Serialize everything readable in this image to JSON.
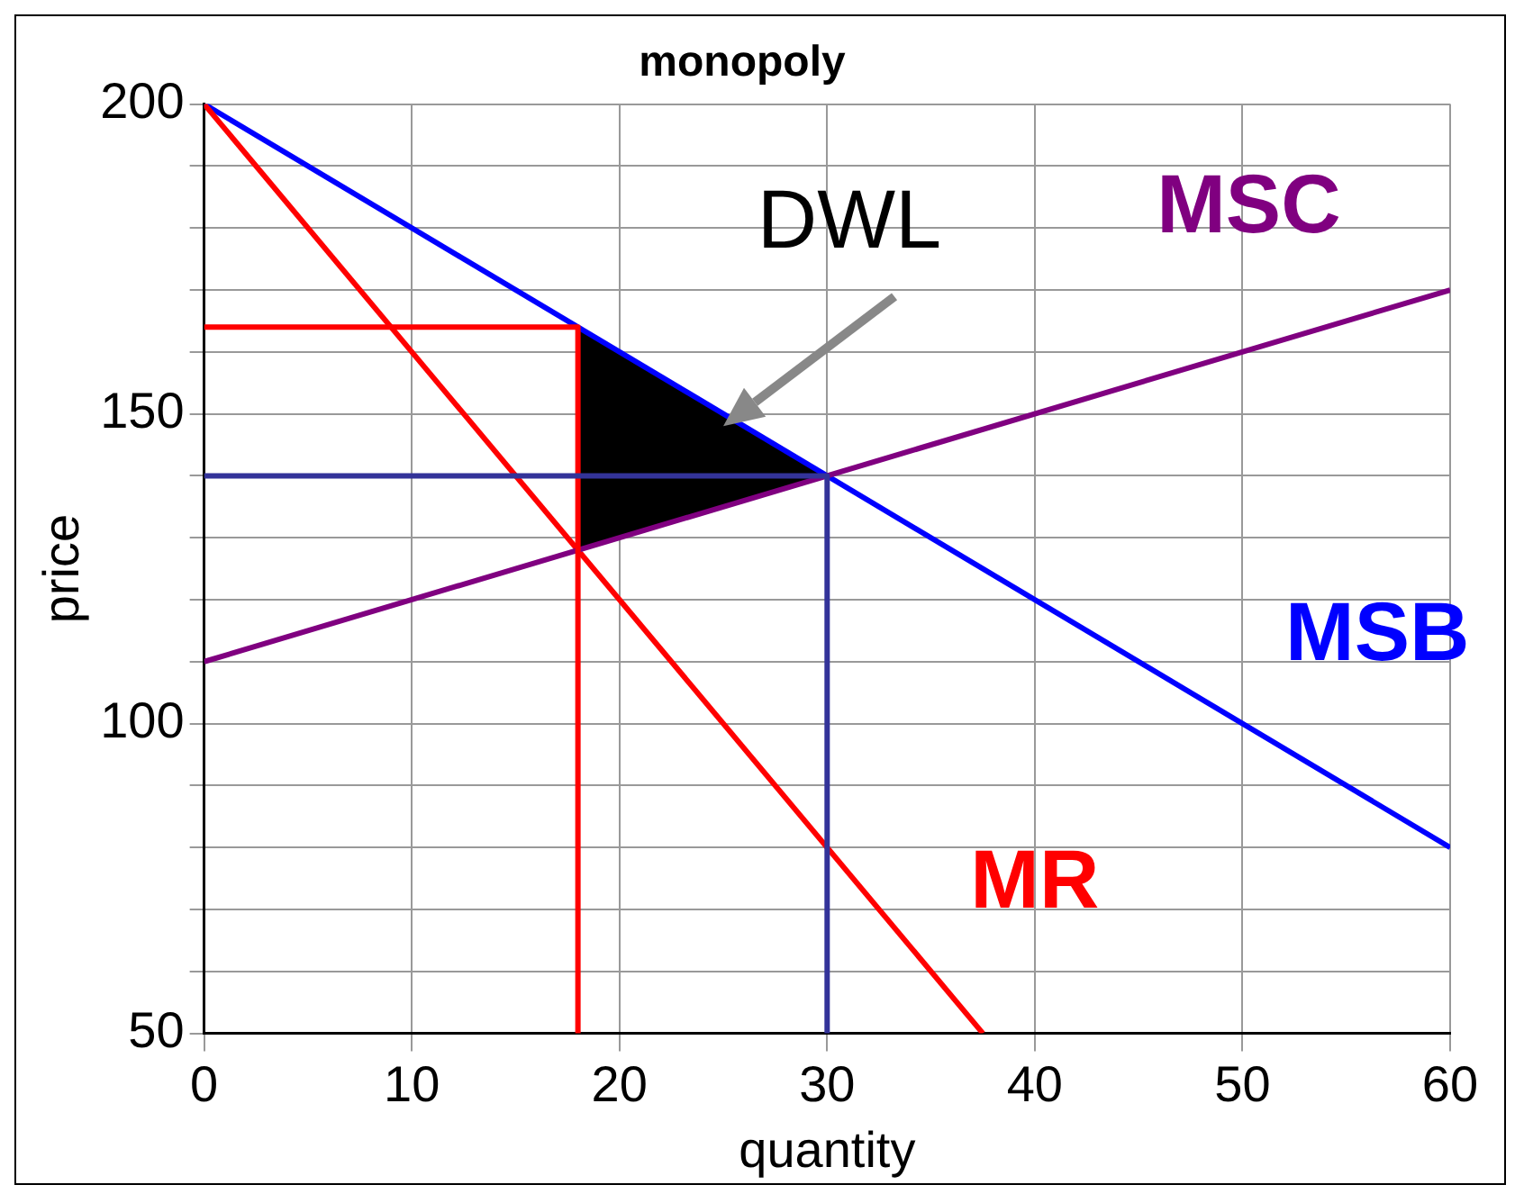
{
  "chart_data": {
    "type": "line",
    "title": "monopoly",
    "xlabel": "quantity",
    "ylabel": "price",
    "xlim": [
      0,
      60
    ],
    "xticks": [
      0,
      10,
      20,
      30,
      40,
      50,
      60
    ],
    "ylim": [
      50,
      200
    ],
    "yticks": [
      50,
      {
        "value": 60,
        "label": null
      },
      {
        "value": 70,
        "label": null
      },
      {
        "value": 80,
        "label": null
      },
      {
        "value": 90,
        "label": null
      },
      100,
      {
        "value": 110,
        "label": null
      },
      {
        "value": 120,
        "label": null
      },
      {
        "value": 130,
        "label": null
      },
      {
        "value": 140,
        "label": null
      },
      150,
      {
        "value": 160,
        "label": null
      },
      {
        "value": 170,
        "label": null
      },
      {
        "value": 180,
        "label": null
      },
      {
        "value": 190,
        "label": null
      },
      200
    ],
    "grid": true,
    "legend": false,
    "marker": "none",
    "line_style": "solid",
    "series": [
      {
        "type": "area",
        "color": "#000000",
        "x": [
          18,
          18,
          30,
          18
        ],
        "values": [
          164,
          128,
          140,
          164
        ]
      },
      {
        "name": "MSB",
        "color": "#0000ff",
        "x": [
          0,
          60
        ],
        "values": [
          200,
          80
        ]
      },
      {
        "name": "MR",
        "color": "#ff0000",
        "x": [
          0,
          37.5
        ],
        "values": [
          200,
          50
        ]
      },
      {
        "name": "MSC",
        "color": "#800080",
        "x": [
          0,
          60
        ],
        "values": [
          110,
          170
        ]
      },
      {
        "color": "#ff0000",
        "x": [
          0,
          18,
          18
        ],
        "values": [
          164,
          164,
          50
        ]
      },
      {
        "color": "#333399",
        "x": [
          0,
          30,
          30
        ],
        "values": [
          140,
          140,
          50
        ]
      }
    ],
    "annotations": [
      {
        "text": "DWL",
        "x": 25,
        "y": 148
      }
    ]
  }
}
